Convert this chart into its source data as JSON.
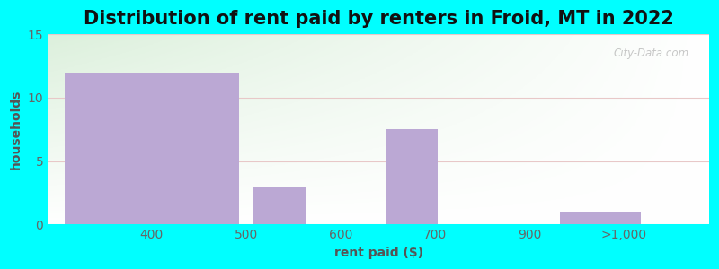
{
  "title": "Distribution of rent paid by renters in Froid, MT in 2022",
  "xlabel": "rent paid ($)",
  "ylabel": "households",
  "tick_labels": [
    "400",
    "500",
    "600",
    "700",
    "900",
    ">1,000"
  ],
  "bar_color": "#BBA8D4",
  "ylim": [
    0,
    15
  ],
  "yticks": [
    0,
    5,
    10,
    15
  ],
  "bg_color_outer": "#00FFFF",
  "title_fontsize": 15,
  "axis_label_fontsize": 10,
  "tick_fontsize": 10,
  "watermark_text": "City-Data.com"
}
